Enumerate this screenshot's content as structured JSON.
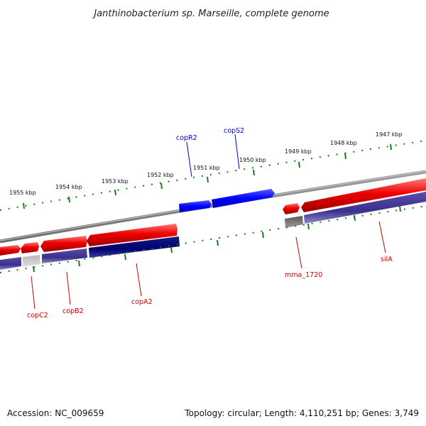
{
  "title": "Janthinobacterium sp. Marseille, complete genome",
  "footer": {
    "accession": "Accession: NC_009659",
    "topology": "Topology: circular; Length: 4,110,251 bp; Genes: 3,749"
  },
  "colors": {
    "forward": "#ff0000",
    "reverse": "#3a2f8c",
    "blue_gene": "#0000ff",
    "navy_gene": "#000080",
    "gray_gene": "#646464",
    "light_gene": "#c8c8c8",
    "backbone": "#808080",
    "ticks": "#1a7a1a",
    "label_red": "#cc0000",
    "label_blue": "#0000cc"
  },
  "scale_labels": [
    "1955 kbp",
    "1954 kbp",
    "1953 kbp",
    "1952 kbp",
    "1951 kbp",
    "1950 kbp",
    "1949 kbp",
    "1948 kbp",
    "1947 kbp"
  ],
  "gene_labels": {
    "copR2": "copR2",
    "copS2": "copS2",
    "copC2": "copC2",
    "copB2": "copB2",
    "copA2": "copA2",
    "mma_1720": "mma_1720",
    "silA": "silA"
  }
}
